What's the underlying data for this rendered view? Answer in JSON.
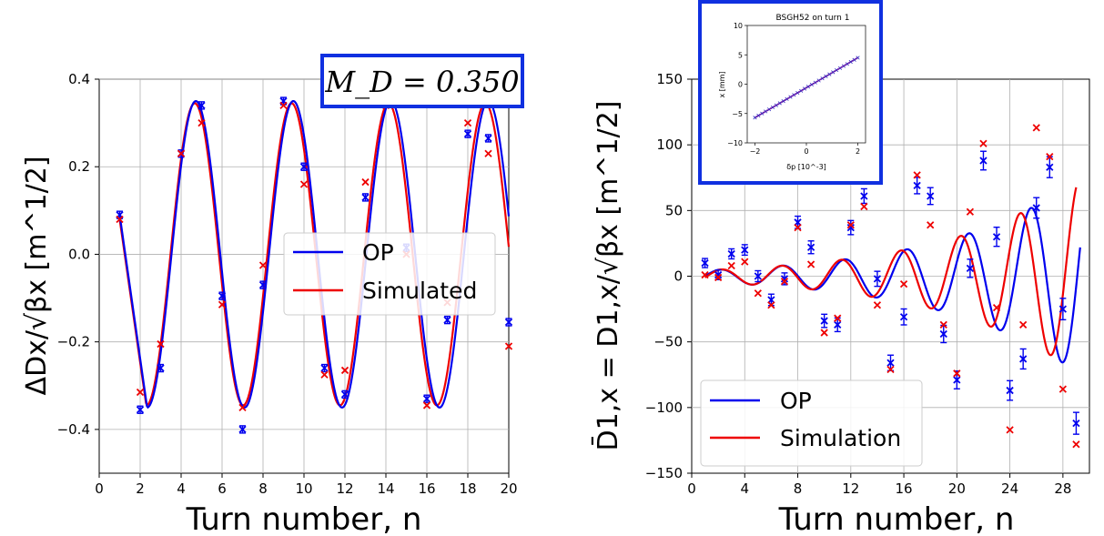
{
  "colors": {
    "op": "#0000ee",
    "sim": "#ee0000",
    "box": "#1030e0"
  },
  "chart_data": [
    {
      "type": "line",
      "xlabel": "Turn number, n",
      "ylabel": "ΔDx/√βx [m^1/2]",
      "xlim": [
        0,
        20
      ],
      "ylim": [
        -0.5,
        0.4
      ],
      "xticks": [
        "0",
        "2",
        "4",
        "6",
        "8",
        "10",
        "12",
        "14",
        "16",
        "18",
        "20"
      ],
      "yticks": [
        "−0.4",
        "−0.2",
        "0.0",
        "0.2",
        "0.4"
      ],
      "grid": true,
      "legend_position": "center-right",
      "annotation": "M_D = 0.350",
      "series": [
        {
          "name": "OP",
          "kind": "curve",
          "A": 0.35,
          "T": 4.76,
          "x0": 2.34,
          "xrange": [
            1,
            20
          ]
        },
        {
          "name": "Simulated",
          "kind": "curve",
          "A": 0.345,
          "T": 4.73,
          "x0": 2.3,
          "xrange": [
            1,
            20
          ]
        },
        {
          "name": "OP measured",
          "kind": "points",
          "x": [
            1,
            2,
            3,
            4,
            5,
            6,
            7,
            8,
            9,
            10,
            11,
            12,
            13,
            14,
            15,
            16,
            17,
            18,
            19,
            20
          ],
          "y": [
            0.09,
            -0.355,
            -0.26,
            0.23,
            0.34,
            -0.095,
            -0.4,
            -0.07,
            0.35,
            0.2,
            -0.26,
            -0.32,
            0.13,
            0.36,
            0.015,
            -0.33,
            -0.15,
            0.275,
            0.265,
            -0.155
          ]
        },
        {
          "name": "Simulated points",
          "kind": "points",
          "x": [
            1,
            2,
            3,
            4,
            5,
            6,
            7,
            8,
            9,
            10,
            11,
            12,
            13,
            14,
            15,
            16,
            17,
            18,
            19,
            20
          ],
          "y": [
            0.08,
            -0.315,
            -0.205,
            0.23,
            0.3,
            -0.115,
            -0.35,
            -0.025,
            0.34,
            0.16,
            -0.275,
            -0.265,
            0.165,
            0.34,
            0.0,
            -0.345,
            -0.11,
            0.3,
            0.23,
            -0.21
          ]
        }
      ]
    },
    {
      "type": "line",
      "xlabel": "Turn number, n",
      "ylabel": "D̄1,x = D1,x/√βx [m^1/2]",
      "xlim": [
        0,
        30
      ],
      "ylim": [
        -150,
        150
      ],
      "xticks": [
        "0",
        "4",
        "8",
        "12",
        "16",
        "20",
        "24",
        "28"
      ],
      "yticks": [
        "−150",
        "−100",
        "−50",
        "0",
        "50",
        "100",
        "150"
      ],
      "grid": true,
      "legend_position": "lower-left",
      "series": [
        {
          "name": "OP",
          "kind": "curve",
          "g": 0.0995,
          "T": 4.68,
          "x0": 1.0,
          "xrange": [
            1,
            29.3
          ]
        },
        {
          "name": "Simulation",
          "kind": "curve",
          "g": 0.0995,
          "T": 4.5,
          "x0": 1.15,
          "xrange": [
            1,
            29
          ]
        },
        {
          "name": "OP measured",
          "kind": "points",
          "x": [
            1,
            2,
            3,
            4,
            5,
            6,
            7,
            8,
            9,
            10,
            11,
            12,
            13,
            14,
            15,
            16,
            17,
            18,
            19,
            20,
            21,
            22,
            23,
            24,
            25,
            26,
            27,
            28,
            29
          ],
          "y": [
            10,
            1,
            17,
            20,
            0,
            -18,
            -2,
            41,
            22,
            -34,
            -37,
            37,
            61,
            -2,
            -66,
            -31,
            69,
            61,
            -44,
            -79,
            6,
            88,
            30,
            -87,
            -63,
            52,
            83,
            -25,
            -112
          ]
        },
        {
          "name": "Simulation points",
          "kind": "points",
          "x": [
            1,
            2,
            3,
            4,
            5,
            6,
            7,
            8,
            9,
            10,
            11,
            12,
            13,
            14,
            15,
            16,
            17,
            18,
            19,
            20,
            21,
            22,
            23,
            24,
            25,
            26,
            27,
            28,
            29
          ],
          "y": [
            1,
            -1,
            8,
            11,
            -13,
            -22,
            -4,
            37,
            9,
            -43,
            -32,
            39,
            53,
            -22,
            -71,
            -6,
            77,
            39,
            -37,
            -74,
            49,
            101,
            -24,
            -117,
            -37,
            113,
            91,
            -86,
            -128
          ]
        }
      ]
    },
    {
      "type": "line",
      "title": "BSGH52 on turn 1",
      "xlabel": "δp [10^-3]",
      "ylabel": "x [mm]",
      "xlim": [
        -2.3,
        2.3
      ],
      "ylim": [
        -10,
        10
      ],
      "xticks": [
        "−2",
        "0",
        "2"
      ],
      "yticks": [
        "−10",
        "−5",
        "0",
        "5",
        "10"
      ],
      "series": [
        {
          "name": "fit",
          "kind": "line",
          "slope": 2.55,
          "intercept": -0.6
        },
        {
          "name": "points",
          "kind": "points",
          "count": 30
        }
      ]
    }
  ],
  "legends": {
    "left": [
      "OP",
      "Simulated"
    ],
    "right": [
      "OP",
      "Simulation"
    ]
  }
}
